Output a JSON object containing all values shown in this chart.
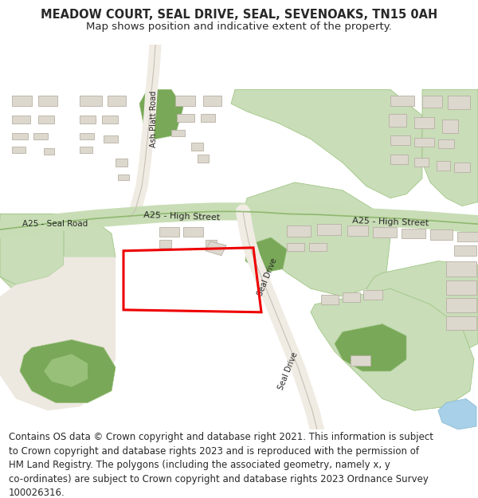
{
  "title": "MEADOW COURT, SEAL DRIVE, SEAL, SEVENOAKS, TN15 0AH",
  "subtitle": "Map shows position and indicative extent of the property.",
  "footer": "Contains OS data © Crown copyright and database right 2021. This information is subject\nto Crown copyright and database rights 2023 and is reproduced with the permission of\nHM Land Registry. The polygons (including the associated geometry, namely x, y\nco-ordinates) are subject to Crown copyright and database rights 2023 Ordnance Survey\n100026316.",
  "title_fontsize": 10.5,
  "subtitle_fontsize": 9.5,
  "footer_fontsize": 8.5,
  "map_bg": "#f5f0ea",
  "green_light": "#c8ddb8",
  "green_mid": "#98c078",
  "green_dark": "#78a858",
  "road_green_fill": "#c8ddb5",
  "road_green_edge": "#90b870",
  "road_white_fill": "#f0ece4",
  "road_white_edge": "#c8c0b4",
  "building_fill": "#ddd8ce",
  "building_edge": "#b8b0a4",
  "water_fill": "#a8d0e8",
  "red_color": "#ee0000",
  "red_lw": 2.2,
  "white": "#ffffff",
  "text_dark": "#282828",
  "header_bg": "#ffffff",
  "footer_bg": "#ffffff"
}
